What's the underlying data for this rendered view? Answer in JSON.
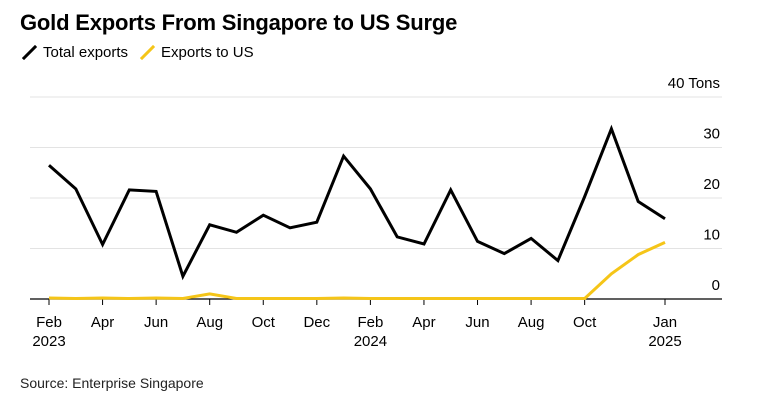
{
  "header": {
    "title": "Gold Exports From Singapore to US Surge"
  },
  "legend": [
    {
      "label": "Total exports",
      "color": "#000000"
    },
    {
      "label": "Exports to US",
      "color": "#f5c518"
    }
  ],
  "source": "Source: Enterprise Singapore",
  "chart_data": {
    "type": "line",
    "title": "Gold Exports From Singapore to US Surge",
    "unit": "Tons",
    "ylim": [
      0,
      40
    ],
    "yticks": [
      {
        "value": 0,
        "label": "0"
      },
      {
        "value": 10,
        "label": "10"
      },
      {
        "value": 20,
        "label": "20"
      },
      {
        "value": 30,
        "label": "30"
      },
      {
        "value": 40,
        "label": "40 Tons"
      }
    ],
    "grid": true,
    "x": [
      "2023-02",
      "2023-03",
      "2023-04",
      "2023-05",
      "2023-06",
      "2023-07",
      "2023-08",
      "2023-09",
      "2023-10",
      "2023-11",
      "2023-12",
      "2024-01",
      "2024-02",
      "2024-03",
      "2024-04",
      "2024-05",
      "2024-06",
      "2024-07",
      "2024-08",
      "2024-09",
      "2024-10",
      "2024-11",
      "2024-12",
      "2025-01"
    ],
    "xticks": [
      {
        "index": 0,
        "label": "Feb",
        "sublabel": "2023"
      },
      {
        "index": 2,
        "label": "Apr",
        "sublabel": ""
      },
      {
        "index": 4,
        "label": "Jun",
        "sublabel": ""
      },
      {
        "index": 6,
        "label": "Aug",
        "sublabel": ""
      },
      {
        "index": 8,
        "label": "Oct",
        "sublabel": ""
      },
      {
        "index": 10,
        "label": "Dec",
        "sublabel": ""
      },
      {
        "index": 12,
        "label": "Feb",
        "sublabel": "2024"
      },
      {
        "index": 14,
        "label": "Apr",
        "sublabel": ""
      },
      {
        "index": 16,
        "label": "Jun",
        "sublabel": ""
      },
      {
        "index": 18,
        "label": "Aug",
        "sublabel": ""
      },
      {
        "index": 20,
        "label": "Oct",
        "sublabel": ""
      },
      {
        "index": 23,
        "label": "Jan",
        "sublabel": "2025"
      }
    ],
    "series": [
      {
        "name": "Total exports",
        "color": "#000000",
        "values": [
          26.5,
          21.8,
          10.8,
          21.6,
          21.3,
          4.5,
          14.7,
          13.2,
          16.6,
          14.1,
          15.2,
          28.3,
          21.8,
          12.3,
          10.9,
          21.6,
          11.4,
          9.0,
          12.0,
          7.6,
          20.3,
          33.7,
          19.3,
          15.9
        ]
      },
      {
        "name": "Exports to US",
        "color": "#f5c518",
        "values": [
          0.2,
          0.1,
          0.2,
          0.1,
          0.2,
          0.1,
          1.0,
          0.1,
          0.1,
          0.1,
          0.1,
          0.2,
          0.1,
          0.1,
          0.1,
          0.1,
          0.1,
          0.1,
          0.1,
          0.1,
          0.1,
          5.0,
          8.8,
          11.2
        ]
      }
    ]
  }
}
